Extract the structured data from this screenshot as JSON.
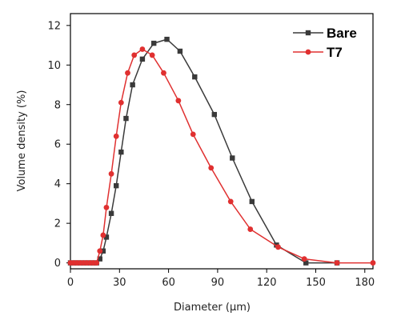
{
  "chart_data": {
    "type": "line",
    "xlabel": "Diameter (μm)",
    "ylabel": "Volume density (%)",
    "xlim": [
      0,
      185
    ],
    "ylim": [
      -0.3,
      12.6
    ],
    "xticks": [
      0,
      30,
      60,
      90,
      120,
      150,
      180
    ],
    "yticks": [
      0,
      2,
      4,
      6,
      8,
      10,
      12
    ],
    "grid": false,
    "legend_position": "top-right",
    "series": [
      {
        "name": "Bare",
        "color": "#3a3a3a",
        "marker": "square",
        "x": [
          0,
          2,
          4,
          6,
          8,
          10,
          12,
          14,
          16,
          18,
          20,
          22,
          25,
          28,
          31,
          34,
          38,
          44,
          51,
          59,
          67,
          76,
          88,
          99,
          111,
          126,
          144,
          163
        ],
        "y": [
          0,
          0,
          0,
          0,
          0,
          0,
          0,
          0,
          0,
          0.2,
          0.6,
          1.3,
          2.5,
          3.9,
          5.6,
          7.3,
          9.0,
          10.3,
          11.1,
          11.3,
          10.7,
          9.4,
          7.5,
          5.3,
          3.1,
          0.9,
          0.0,
          0.0
        ]
      },
      {
        "name": "T7",
        "color": "#e03030",
        "marker": "circle",
        "x": [
          0,
          2,
          4,
          6,
          8,
          10,
          12,
          14,
          16,
          18,
          20,
          22,
          25,
          28,
          31,
          35,
          39,
          44,
          50,
          57,
          66,
          75,
          86,
          98,
          110,
          127,
          143,
          163,
          185
        ],
        "y": [
          0,
          0,
          0,
          0,
          0,
          0,
          0,
          0,
          0,
          0.6,
          1.4,
          2.8,
          4.5,
          6.4,
          8.1,
          9.6,
          10.5,
          10.8,
          10.5,
          9.6,
          8.2,
          6.5,
          4.8,
          3.1,
          1.7,
          0.8,
          0.2,
          0.0,
          0.0
        ]
      }
    ]
  }
}
